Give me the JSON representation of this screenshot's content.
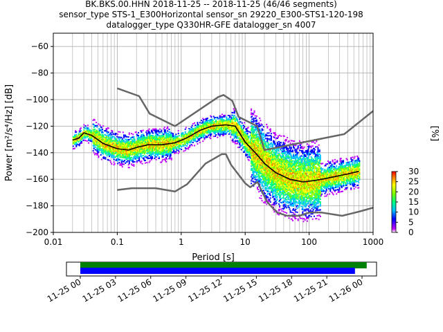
{
  "title_lines": [
    "BK.BKS.00.HHN   2018-11-25 -- 2018-11-25  (46/46 segments)",
    "sensor_type STS-1_E300Horizontal sensor_sn 29220_E300-STS1-120-198",
    "datalogger_type Q330HR-GFE datalogger_sn 4007"
  ],
  "chart_data": [
    {
      "type": "heatmap",
      "title": "BK.BKS.00.HHN   2018-11-25 -- 2018-11-25  (46/46 segments)",
      "xlabel": "Period [s]",
      "ylabel": "Power [m²/s⁴/Hz] [dB]",
      "x_scale": "log",
      "xlim": [
        0.01,
        1000
      ],
      "ylim": [
        -200,
        -50
      ],
      "x_ticks": [
        {
          "value": 0.01,
          "label": "0.01"
        },
        {
          "value": 0.1,
          "label": "0.1"
        },
        {
          "value": 1,
          "label": "1"
        },
        {
          "value": 10,
          "label": "10"
        },
        {
          "value": 100,
          "label": "100"
        },
        {
          "value": 1000,
          "label": "1000"
        }
      ],
      "y_ticks": [
        -60,
        -80,
        -100,
        -120,
        -140,
        -160,
        -180,
        -200
      ],
      "grid": true,
      "colorbar": {
        "label": "[%]",
        "range": [
          0,
          30
        ],
        "ticks": [
          0,
          5,
          10,
          15,
          20,
          25,
          30
        ],
        "colors": [
          "#ffffff",
          "#c000ff",
          "#0000ff",
          "#00c0ff",
          "#00ff80",
          "#80ff00",
          "#ffff00",
          "#ff8000",
          "#ff0000"
        ]
      },
      "series": [
        {
          "role": "noise model upper",
          "color": "#666666",
          "x": [
            0.1,
            0.22,
            0.32,
            0.8,
            3.8,
            4.6,
            6.3,
            7.9,
            15.4,
            20,
            354.8,
            10000
          ],
          "y": [
            -91.5,
            -97.4,
            -110.5,
            -120,
            -98,
            -96.5,
            -101,
            -113,
            -120,
            -138,
            -126,
            -70
          ]
        },
        {
          "role": "noise model lower",
          "color": "#666666",
          "x": [
            0.1,
            0.17,
            0.4,
            0.8,
            1.24,
            2.4,
            4.3,
            5,
            6,
            10,
            12,
            15.6,
            21.9,
            31.6,
            45,
            70,
            101,
            154,
            328,
            600,
            10000
          ],
          "y": [
            -168,
            -166.7,
            -166.7,
            -169.2,
            -163.7,
            -148.1,
            -141.1,
            -141.1,
            -149,
            -163,
            -166,
            -162,
            -177,
            -185,
            -187.5,
            -187.5,
            -185,
            -185,
            -187.5,
            -184.4,
            -168
          ]
        },
        {
          "role": "mean",
          "color": "#000000",
          "x": [
            0.02,
            0.025,
            0.03,
            0.04,
            0.06,
            0.1,
            0.15,
            0.2,
            0.3,
            0.5,
            0.8,
            1.2,
            2,
            3,
            5,
            7,
            10,
            15,
            20,
            30,
            50,
            80,
            120,
            200,
            400,
            600
          ],
          "y": [
            -130.5,
            -129,
            -125,
            -127,
            -133,
            -137,
            -138,
            -136,
            -134,
            -134,
            -132.5,
            -129,
            -123,
            -120,
            -119,
            -120,
            -132,
            -141,
            -148,
            -155,
            -160,
            -162,
            -161,
            -159,
            -156,
            -154
          ]
        }
      ]
    },
    {
      "type": "bar",
      "title": "",
      "x_ticks": [
        "11-25 00",
        "11-25 03",
        "11-25 06",
        "11-25 09",
        "11-25 12",
        "11-25 15",
        "11-25 18",
        "11-25 21",
        "11-26 00"
      ],
      "bars": [
        {
          "role": "data coverage",
          "color": "#008000",
          "start_hour": 0,
          "end_hour": 24.4
        },
        {
          "role": "PSD coverage",
          "color": "#0000ff",
          "start_hour": 0,
          "end_hour": 23.4
        }
      ]
    }
  ]
}
